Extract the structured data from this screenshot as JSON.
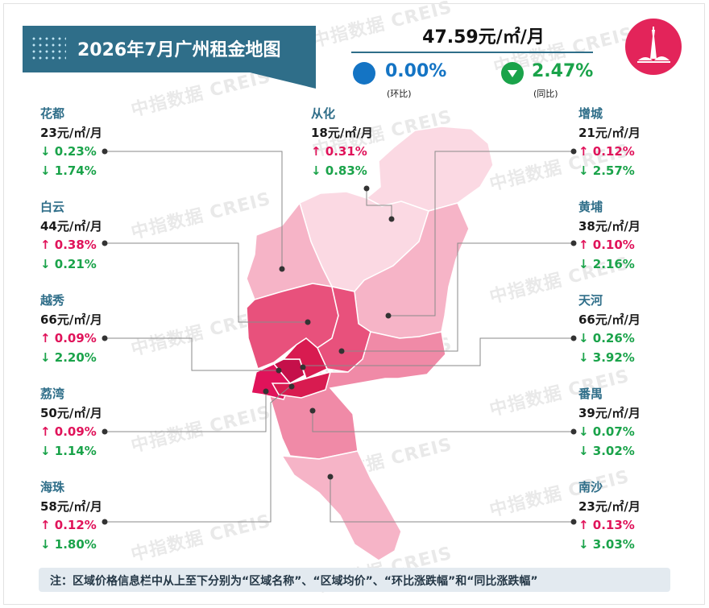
{
  "title": "2026年7月广州租金地图",
  "header": {
    "avg_price": "47.59元/㎡/月",
    "mom": {
      "value": "0.00%",
      "label": "(环比)",
      "color": "#1474c4"
    },
    "yoy": {
      "value": "2.47%",
      "label": "(同比)",
      "color": "#1aa34a"
    }
  },
  "watermark": "中指数据 CREIS",
  "colors": {
    "name": "#2f6e89",
    "up": "#e0135a",
    "down": "#1aa34a",
    "map_lightest": "#fbd9e3",
    "map_light": "#f6b4c7",
    "map_medium": "#f08aa7",
    "map_dark": "#e8517c",
    "map_darkest": "#d81b50"
  },
  "districts": {
    "huadu": {
      "name": "花都",
      "price": "23元/㎡/月",
      "mom": "↓ 0.23%",
      "yoy": "↓ 1.74%"
    },
    "baiyun": {
      "name": "白云",
      "price": "44元/㎡/月",
      "mom": "↑ 0.38%",
      "yoy": "↓ 0.21%"
    },
    "yuexiu": {
      "name": "越秀",
      "price": "66元/㎡/月",
      "mom": "↑ 0.09%",
      "yoy": "↓ 2.20%"
    },
    "liwan": {
      "name": "荔湾",
      "price": "50元/㎡/月",
      "mom": "↑ 0.09%",
      "yoy": "↓ 1.14%"
    },
    "haizhu": {
      "name": "海珠",
      "price": "58元/㎡/月",
      "mom": "↑ 0.12%",
      "yoy": "↓ 1.80%"
    },
    "conghua": {
      "name": "从化",
      "price": "18元/㎡/月",
      "mom": "↑ 0.31%",
      "yoy": "↓ 0.83%"
    },
    "zengcheng": {
      "name": "增城",
      "price": "21元/㎡/月",
      "mom": "↑ 0.12%",
      "yoy": "↓ 2.57%"
    },
    "huangpu": {
      "name": "黄埔",
      "price": "38元/㎡/月",
      "mom": "↑ 0.10%",
      "yoy": "↓ 2.16%"
    },
    "tianhe": {
      "name": "天河",
      "price": "66元/㎡/月",
      "mom": "↓ 0.26%",
      "yoy": "↓ 3.92%"
    },
    "panyu": {
      "name": "番禺",
      "price": "39元/㎡/月",
      "mom": "↓ 0.07%",
      "yoy": "↓ 3.02%"
    },
    "nansha": {
      "name": "南沙",
      "price": "23元/㎡/月",
      "mom": "↑ 0.13%",
      "yoy": "↓ 3.03%"
    }
  },
  "footnote": "注：区域价格信息栏中从上至下分别为“区域名称”、“区域均价”、“环比涨跌幅”和“同比涨跌幅”"
}
